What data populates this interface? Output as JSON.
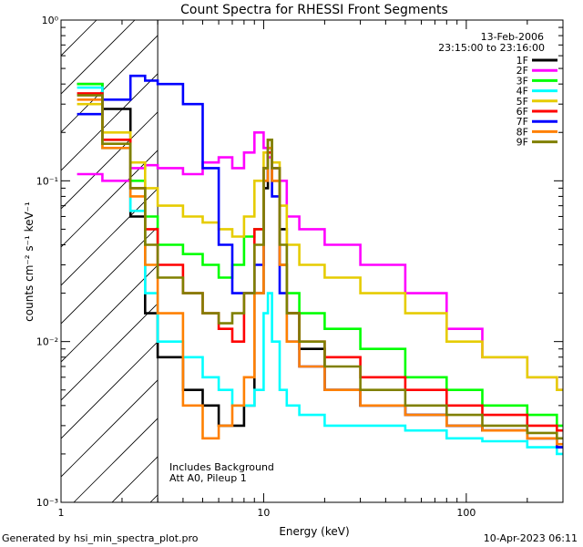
{
  "chart_data": {
    "type": "line",
    "title": "Count Spectra for RHESSI Front Segments",
    "xlabel": "Energy (keV)",
    "ylabel": "counts cm⁻² s⁻¹ keV⁻¹",
    "xscale": "log",
    "yscale": "log",
    "xlim": [
      1,
      300
    ],
    "ylim": [
      0.001,
      1
    ],
    "x_ticks": [
      {
        "value": 1,
        "label": "1"
      },
      {
        "value": 10,
        "label": "10"
      },
      {
        "value": 100,
        "label": "100"
      }
    ],
    "y_ticks": [
      {
        "value": 1,
        "label": "10⁰"
      },
      {
        "value": 0.1,
        "label": "10⁻¹"
      },
      {
        "value": 0.01,
        "label": "10⁻²"
      },
      {
        "value": 0.001,
        "label": "10⁻³"
      }
    ],
    "date": "13-Feb-2006",
    "time_range": "23:15:00 to 23:16:00",
    "hatched_below_keV": 3,
    "annotations": [
      "Includes Background",
      "Att A0, Pileup 1"
    ],
    "series": [
      {
        "name": "1F",
        "color": "#000000",
        "x": [
          1.2,
          1.6,
          2.2,
          2.6,
          3,
          4,
          5,
          6,
          7,
          8,
          9,
          10,
          10.5,
          11,
          12,
          13,
          15,
          20,
          30,
          50,
          80,
          120,
          200,
          280
        ],
        "y": [
          0.4,
          0.28,
          0.06,
          0.015,
          0.008,
          0.005,
          0.004,
          0.003,
          0.003,
          0.004,
          0.02,
          0.09,
          0.18,
          0.12,
          0.05,
          0.015,
          0.009,
          0.005,
          0.004,
          0.0035,
          0.003,
          0.0028,
          0.0025,
          0.0022
        ]
      },
      {
        "name": "2F",
        "color": "#ff00ff",
        "x": [
          1.2,
          1.6,
          2.2,
          2.6,
          3,
          4,
          5,
          6,
          7,
          8,
          9,
          10,
          10.5,
          11,
          12,
          13,
          15,
          20,
          30,
          50,
          80,
          120,
          200,
          280
        ],
        "y": [
          0.11,
          0.1,
          0.12,
          0.125,
          0.12,
          0.11,
          0.13,
          0.14,
          0.12,
          0.15,
          0.2,
          0.16,
          0.14,
          0.12,
          0.1,
          0.06,
          0.05,
          0.04,
          0.03,
          0.02,
          0.012,
          0.008,
          0.006,
          0.005
        ]
      },
      {
        "name": "3F",
        "color": "#00ff00",
        "x": [
          1.2,
          1.6,
          2.2,
          2.6,
          3,
          4,
          5,
          6,
          7,
          8,
          9,
          10,
          10.5,
          11,
          12,
          13,
          15,
          20,
          30,
          50,
          80,
          120,
          200,
          280
        ],
        "y": [
          0.4,
          0.18,
          0.1,
          0.06,
          0.04,
          0.035,
          0.03,
          0.025,
          0.03,
          0.045,
          0.05,
          0.12,
          0.16,
          0.1,
          0.03,
          0.02,
          0.015,
          0.012,
          0.009,
          0.006,
          0.005,
          0.004,
          0.0035,
          0.003
        ]
      },
      {
        "name": "4F",
        "color": "#00ffff",
        "x": [
          1.2,
          1.6,
          2.2,
          2.6,
          3,
          4,
          5,
          6,
          7,
          8,
          9,
          10,
          10.5,
          11,
          12,
          13,
          15,
          20,
          30,
          50,
          80,
          120,
          200,
          280
        ],
        "y": [
          0.38,
          0.16,
          0.065,
          0.02,
          0.01,
          0.008,
          0.006,
          0.005,
          0.004,
          0.004,
          0.005,
          0.015,
          0.02,
          0.01,
          0.005,
          0.004,
          0.0035,
          0.003,
          0.003,
          0.0028,
          0.0025,
          0.0024,
          0.0022,
          0.002
        ]
      },
      {
        "name": "5F",
        "color": "#e6cc00",
        "x": [
          1.2,
          1.6,
          2.2,
          2.6,
          3,
          4,
          5,
          6,
          7,
          8,
          9,
          10,
          10.5,
          11,
          12,
          13,
          15,
          20,
          30,
          50,
          80,
          120,
          200,
          280
        ],
        "y": [
          0.3,
          0.2,
          0.13,
          0.09,
          0.07,
          0.06,
          0.055,
          0.05,
          0.045,
          0.06,
          0.1,
          0.15,
          0.18,
          0.13,
          0.07,
          0.04,
          0.03,
          0.025,
          0.02,
          0.015,
          0.01,
          0.008,
          0.006,
          0.005
        ]
      },
      {
        "name": "6F",
        "color": "#ff0000",
        "x": [
          1.2,
          1.6,
          2.2,
          2.6,
          3,
          4,
          5,
          6,
          7,
          8,
          9,
          10,
          10.5,
          11,
          12,
          13,
          15,
          20,
          30,
          50,
          80,
          120,
          200,
          280
        ],
        "y": [
          0.35,
          0.18,
          0.09,
          0.05,
          0.03,
          0.02,
          0.015,
          0.012,
          0.01,
          0.02,
          0.05,
          0.12,
          0.15,
          0.1,
          0.03,
          0.015,
          0.01,
          0.008,
          0.006,
          0.005,
          0.004,
          0.0035,
          0.003,
          0.0028
        ]
      },
      {
        "name": "7F",
        "color": "#0000ff",
        "x": [
          1.2,
          1.6,
          2.2,
          2.6,
          3,
          4,
          5,
          6,
          7,
          8,
          9,
          10,
          10.5,
          11,
          12,
          13,
          15,
          20,
          30,
          50,
          80,
          120,
          200,
          280
        ],
        "y": [
          0.26,
          0.32,
          0.45,
          0.42,
          0.4,
          0.3,
          0.12,
          0.04,
          0.02,
          0.02,
          0.03,
          0.1,
          0.16,
          0.08,
          0.02,
          0.01,
          0.007,
          0.005,
          0.004,
          0.0035,
          0.003,
          0.0028,
          0.0025,
          0.0022
        ]
      },
      {
        "name": "8F",
        "color": "#ff8000",
        "x": [
          1.2,
          1.6,
          2.2,
          2.6,
          3,
          4,
          5,
          6,
          7,
          8,
          9,
          10,
          10.5,
          11,
          12,
          13,
          15,
          20,
          30,
          50,
          80,
          120,
          200,
          280
        ],
        "y": [
          0.32,
          0.16,
          0.08,
          0.03,
          0.015,
          0.004,
          0.0025,
          0.003,
          0.004,
          0.006,
          0.02,
          0.1,
          0.16,
          0.1,
          0.03,
          0.01,
          0.007,
          0.005,
          0.004,
          0.0035,
          0.003,
          0.0028,
          0.0025,
          0.0023
        ]
      },
      {
        "name": "9F",
        "color": "#808000",
        "x": [
          1.2,
          1.6,
          2.2,
          2.6,
          3,
          4,
          5,
          6,
          7,
          8,
          9,
          10,
          10.5,
          11,
          12,
          13,
          15,
          20,
          30,
          50,
          80,
          120,
          200,
          280
        ],
        "y": [
          0.34,
          0.17,
          0.09,
          0.04,
          0.025,
          0.02,
          0.015,
          0.013,
          0.015,
          0.02,
          0.04,
          0.12,
          0.18,
          0.12,
          0.04,
          0.015,
          0.01,
          0.007,
          0.005,
          0.004,
          0.0035,
          0.003,
          0.0027,
          0.0025
        ]
      }
    ]
  },
  "footer": {
    "left": "Generated by hsi_min_spectra_plot.pro",
    "right": "10-Apr-2023 06:11"
  }
}
